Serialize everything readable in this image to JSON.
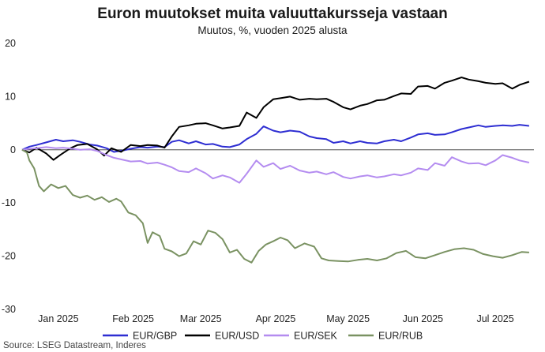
{
  "chart_data": {
    "type": "line",
    "title": "Euron muutokset muita valuuttakursseja vastaan",
    "subtitle": "Muutos, %, vuoden 2025 alusta",
    "source": "Source: LSEG Datastream, Inderes",
    "ylim": [
      -30,
      20
    ],
    "yticks": [
      20,
      10,
      0,
      -10,
      -20,
      -30
    ],
    "xlim": [
      "2024-12-31",
      "2025-07-31"
    ],
    "xticks": [
      {
        "label": "Jan 2025",
        "date": "2025-01-15"
      },
      {
        "label": "Feb 2025",
        "date": "2025-02-15"
      },
      {
        "label": "Mar 2025",
        "date": "2025-03-15"
      },
      {
        "label": "Apr 2025",
        "date": "2025-04-15"
      },
      {
        "label": "May 2025",
        "date": "2025-05-15"
      },
      {
        "label": "Jun 2025",
        "date": "2025-06-15"
      },
      {
        "label": "Jul 2025",
        "date": "2025-07-15"
      }
    ],
    "legend_position": "bottom",
    "series": [
      {
        "name": "EUR/GBP",
        "color": "#2e2ed2",
        "points": [
          [
            "2024-12-31",
            0
          ],
          [
            "2025-01-03",
            0.6
          ],
          [
            "2025-01-06",
            0.9
          ],
          [
            "2025-01-10",
            1.4
          ],
          [
            "2025-01-14",
            1.9
          ],
          [
            "2025-01-17",
            1.6
          ],
          [
            "2025-01-21",
            1.8
          ],
          [
            "2025-01-24",
            1.5
          ],
          [
            "2025-01-28",
            1.0
          ],
          [
            "2025-01-31",
            0.8
          ],
          [
            "2025-02-04",
            0.3
          ],
          [
            "2025-02-07",
            -0.4
          ],
          [
            "2025-02-11",
            -0.1
          ],
          [
            "2025-02-14",
            0.2
          ],
          [
            "2025-02-18",
            0.5
          ],
          [
            "2025-02-21",
            0.4
          ],
          [
            "2025-02-25",
            0.6
          ],
          [
            "2025-02-28",
            0.5
          ],
          [
            "2025-03-03",
            1.5
          ],
          [
            "2025-03-06",
            1.8
          ],
          [
            "2025-03-10",
            1.2
          ],
          [
            "2025-03-13",
            1.6
          ],
          [
            "2025-03-17",
            1.0
          ],
          [
            "2025-03-20",
            1.1
          ],
          [
            "2025-03-24",
            0.6
          ],
          [
            "2025-03-27",
            0.5
          ],
          [
            "2025-03-31",
            1.0
          ],
          [
            "2025-04-03",
            2.0
          ],
          [
            "2025-04-07",
            3.0
          ],
          [
            "2025-04-10",
            4.4
          ],
          [
            "2025-04-14",
            3.6
          ],
          [
            "2025-04-17",
            3.3
          ],
          [
            "2025-04-21",
            3.6
          ],
          [
            "2025-04-25",
            3.4
          ],
          [
            "2025-04-29",
            2.5
          ],
          [
            "2025-05-02",
            2.2
          ],
          [
            "2025-05-06",
            2.0
          ],
          [
            "2025-05-09",
            1.3
          ],
          [
            "2025-05-13",
            1.6
          ],
          [
            "2025-05-16",
            1.2
          ],
          [
            "2025-05-20",
            1.6
          ],
          [
            "2025-05-23",
            1.3
          ],
          [
            "2025-05-27",
            1.2
          ],
          [
            "2025-05-30",
            1.6
          ],
          [
            "2025-06-03",
            1.9
          ],
          [
            "2025-06-06",
            1.6
          ],
          [
            "2025-06-10",
            2.3
          ],
          [
            "2025-06-13",
            2.9
          ],
          [
            "2025-06-17",
            3.1
          ],
          [
            "2025-06-20",
            2.8
          ],
          [
            "2025-06-24",
            2.9
          ],
          [
            "2025-06-27",
            3.3
          ],
          [
            "2025-07-01",
            3.9
          ],
          [
            "2025-07-04",
            4.2
          ],
          [
            "2025-07-08",
            4.6
          ],
          [
            "2025-07-11",
            4.3
          ],
          [
            "2025-07-15",
            4.5
          ],
          [
            "2025-07-18",
            4.6
          ],
          [
            "2025-07-22",
            4.5
          ],
          [
            "2025-07-25",
            4.7
          ],
          [
            "2025-07-29",
            4.5
          ]
        ]
      },
      {
        "name": "EUR/USD",
        "color": "#000000",
        "points": [
          [
            "2024-12-31",
            0
          ],
          [
            "2025-01-03",
            -0.5
          ],
          [
            "2025-01-06",
            0.4
          ],
          [
            "2025-01-10",
            -0.7
          ],
          [
            "2025-01-13",
            -1.9
          ],
          [
            "2025-01-16",
            -0.9
          ],
          [
            "2025-01-20",
            0.3
          ],
          [
            "2025-01-23",
            0.9
          ],
          [
            "2025-01-27",
            1.1
          ],
          [
            "2025-01-31",
            0.1
          ],
          [
            "2025-02-03",
            -1.1
          ],
          [
            "2025-02-06",
            0.3
          ],
          [
            "2025-02-10",
            -0.4
          ],
          [
            "2025-02-14",
            0.9
          ],
          [
            "2025-02-18",
            0.7
          ],
          [
            "2025-02-21",
            0.9
          ],
          [
            "2025-02-25",
            0.8
          ],
          [
            "2025-02-28",
            0.4
          ],
          [
            "2025-03-03",
            2.5
          ],
          [
            "2025-03-06",
            4.3
          ],
          [
            "2025-03-10",
            4.6
          ],
          [
            "2025-03-13",
            4.9
          ],
          [
            "2025-03-17",
            5.0
          ],
          [
            "2025-03-20",
            4.6
          ],
          [
            "2025-03-24",
            4.0
          ],
          [
            "2025-03-27",
            4.2
          ],
          [
            "2025-03-31",
            4.5
          ],
          [
            "2025-04-03",
            7.0
          ],
          [
            "2025-04-07",
            6.0
          ],
          [
            "2025-04-10",
            8.0
          ],
          [
            "2025-04-14",
            9.5
          ],
          [
            "2025-04-17",
            9.7
          ],
          [
            "2025-04-21",
            10.0
          ],
          [
            "2025-04-25",
            9.4
          ],
          [
            "2025-04-29",
            9.6
          ],
          [
            "2025-05-02",
            9.5
          ],
          [
            "2025-05-06",
            9.6
          ],
          [
            "2025-05-09",
            9.0
          ],
          [
            "2025-05-13",
            8.0
          ],
          [
            "2025-05-16",
            7.6
          ],
          [
            "2025-05-20",
            8.3
          ],
          [
            "2025-05-23",
            8.6
          ],
          [
            "2025-05-27",
            9.3
          ],
          [
            "2025-05-30",
            9.4
          ],
          [
            "2025-06-03",
            10.1
          ],
          [
            "2025-06-06",
            10.6
          ],
          [
            "2025-06-10",
            10.5
          ],
          [
            "2025-06-13",
            11.9
          ],
          [
            "2025-06-17",
            12.0
          ],
          [
            "2025-06-20",
            11.5
          ],
          [
            "2025-06-24",
            12.6
          ],
          [
            "2025-06-27",
            13.0
          ],
          [
            "2025-07-01",
            13.6
          ],
          [
            "2025-07-04",
            13.2
          ],
          [
            "2025-07-08",
            12.9
          ],
          [
            "2025-07-11",
            12.6
          ],
          [
            "2025-07-15",
            12.4
          ],
          [
            "2025-07-18",
            12.5
          ],
          [
            "2025-07-22",
            11.5
          ],
          [
            "2025-07-25",
            12.2
          ],
          [
            "2025-07-29",
            12.8
          ]
        ]
      },
      {
        "name": "EUR/SEK",
        "color": "#b48cf0",
        "points": [
          [
            "2024-12-31",
            0
          ],
          [
            "2025-01-03",
            0.2
          ],
          [
            "2025-01-06",
            0.3
          ],
          [
            "2025-01-10",
            0.5
          ],
          [
            "2025-01-14",
            0.3
          ],
          [
            "2025-01-17",
            0.4
          ],
          [
            "2025-01-21",
            0.2
          ],
          [
            "2025-01-24",
            0.0
          ],
          [
            "2025-01-28",
            0.1
          ],
          [
            "2025-01-31",
            -0.2
          ],
          [
            "2025-02-04",
            -1.0
          ],
          [
            "2025-02-07",
            -1.5
          ],
          [
            "2025-02-11",
            -1.9
          ],
          [
            "2025-02-14",
            -2.2
          ],
          [
            "2025-02-18",
            -2.1
          ],
          [
            "2025-02-21",
            -2.6
          ],
          [
            "2025-02-25",
            -2.4
          ],
          [
            "2025-02-28",
            -2.8
          ],
          [
            "2025-03-03",
            -3.3
          ],
          [
            "2025-03-06",
            -4.0
          ],
          [
            "2025-03-10",
            -4.2
          ],
          [
            "2025-03-13",
            -3.5
          ],
          [
            "2025-03-17",
            -4.4
          ],
          [
            "2025-03-20",
            -5.4
          ],
          [
            "2025-03-24",
            -4.8
          ],
          [
            "2025-03-27",
            -5.2
          ],
          [
            "2025-03-31",
            -6.2
          ],
          [
            "2025-04-03",
            -4.5
          ],
          [
            "2025-04-07",
            -2.0
          ],
          [
            "2025-04-10",
            -3.2
          ],
          [
            "2025-04-14",
            -2.5
          ],
          [
            "2025-04-17",
            -3.6
          ],
          [
            "2025-04-21",
            -3.0
          ],
          [
            "2025-04-25",
            -3.9
          ],
          [
            "2025-04-29",
            -4.3
          ],
          [
            "2025-05-02",
            -4.1
          ],
          [
            "2025-05-06",
            -4.6
          ],
          [
            "2025-05-09",
            -4.2
          ],
          [
            "2025-05-13",
            -5.1
          ],
          [
            "2025-05-16",
            -5.4
          ],
          [
            "2025-05-20",
            -5.0
          ],
          [
            "2025-05-23",
            -4.8
          ],
          [
            "2025-05-27",
            -5.2
          ],
          [
            "2025-05-30",
            -5.0
          ],
          [
            "2025-06-03",
            -4.6
          ],
          [
            "2025-06-06",
            -4.8
          ],
          [
            "2025-06-10",
            -4.3
          ],
          [
            "2025-06-13",
            -3.5
          ],
          [
            "2025-06-17",
            -3.8
          ],
          [
            "2025-06-20",
            -2.5
          ],
          [
            "2025-06-24",
            -3.0
          ],
          [
            "2025-06-27",
            -1.4
          ],
          [
            "2025-07-01",
            -2.2
          ],
          [
            "2025-07-04",
            -2.6
          ],
          [
            "2025-07-08",
            -2.5
          ],
          [
            "2025-07-11",
            -2.9
          ],
          [
            "2025-07-15",
            -2.0
          ],
          [
            "2025-07-18",
            -1.0
          ],
          [
            "2025-07-22",
            -1.5
          ],
          [
            "2025-07-25",
            -2.0
          ],
          [
            "2025-07-29",
            -2.4
          ]
        ]
      },
      {
        "name": "EUR/RUB",
        "color": "#7a9262",
        "points": [
          [
            "2024-12-31",
            0
          ],
          [
            "2025-01-02",
            -0.5
          ],
          [
            "2025-01-03",
            -2.0
          ],
          [
            "2025-01-05",
            -3.5
          ],
          [
            "2025-01-07",
            -6.8
          ],
          [
            "2025-01-09",
            -7.8
          ],
          [
            "2025-01-12",
            -6.5
          ],
          [
            "2025-01-15",
            -7.2
          ],
          [
            "2025-01-18",
            -6.8
          ],
          [
            "2025-01-21",
            -8.5
          ],
          [
            "2025-01-24",
            -9.0
          ],
          [
            "2025-01-27",
            -8.6
          ],
          [
            "2025-01-30",
            -9.4
          ],
          [
            "2025-02-02",
            -8.9
          ],
          [
            "2025-02-05",
            -9.8
          ],
          [
            "2025-02-08",
            -9.2
          ],
          [
            "2025-02-10",
            -9.7
          ],
          [
            "2025-02-13",
            -11.8
          ],
          [
            "2025-02-16",
            -12.3
          ],
          [
            "2025-02-19",
            -13.8
          ],
          [
            "2025-02-21",
            -17.5
          ],
          [
            "2025-02-23",
            -15.5
          ],
          [
            "2025-02-26",
            -16.2
          ],
          [
            "2025-02-28",
            -18.6
          ],
          [
            "2025-03-03",
            -19.1
          ],
          [
            "2025-03-06",
            -20.0
          ],
          [
            "2025-03-09",
            -19.5
          ],
          [
            "2025-03-12",
            -17.2
          ],
          [
            "2025-03-15",
            -17.8
          ],
          [
            "2025-03-18",
            -15.2
          ],
          [
            "2025-03-21",
            -15.6
          ],
          [
            "2025-03-24",
            -16.8
          ],
          [
            "2025-03-27",
            -19.3
          ],
          [
            "2025-03-30",
            -18.8
          ],
          [
            "2025-04-02",
            -20.5
          ],
          [
            "2025-04-05",
            -21.2
          ],
          [
            "2025-04-08",
            -19.0
          ],
          [
            "2025-04-11",
            -17.8
          ],
          [
            "2025-04-14",
            -17.2
          ],
          [
            "2025-04-17",
            -16.5
          ],
          [
            "2025-04-20",
            -17.0
          ],
          [
            "2025-04-23",
            -18.5
          ],
          [
            "2025-04-27",
            -17.6
          ],
          [
            "2025-05-01",
            -18.2
          ],
          [
            "2025-05-04",
            -20.4
          ],
          [
            "2025-05-07",
            -20.8
          ],
          [
            "2025-05-11",
            -20.9
          ],
          [
            "2025-05-15",
            -21.0
          ],
          [
            "2025-05-19",
            -20.7
          ],
          [
            "2025-05-23",
            -20.5
          ],
          [
            "2025-05-27",
            -20.8
          ],
          [
            "2025-05-31",
            -20.4
          ],
          [
            "2025-06-04",
            -19.4
          ],
          [
            "2025-06-08",
            -19.0
          ],
          [
            "2025-06-12",
            -20.2
          ],
          [
            "2025-06-16",
            -20.4
          ],
          [
            "2025-06-20",
            -19.8
          ],
          [
            "2025-06-24",
            -19.2
          ],
          [
            "2025-06-28",
            -18.7
          ],
          [
            "2025-07-02",
            -18.5
          ],
          [
            "2025-07-06",
            -18.8
          ],
          [
            "2025-07-10",
            -19.6
          ],
          [
            "2025-07-14",
            -20.0
          ],
          [
            "2025-07-18",
            -20.3
          ],
          [
            "2025-07-22",
            -19.8
          ],
          [
            "2025-07-26",
            -19.2
          ],
          [
            "2025-07-29",
            -19.3
          ]
        ]
      }
    ]
  }
}
